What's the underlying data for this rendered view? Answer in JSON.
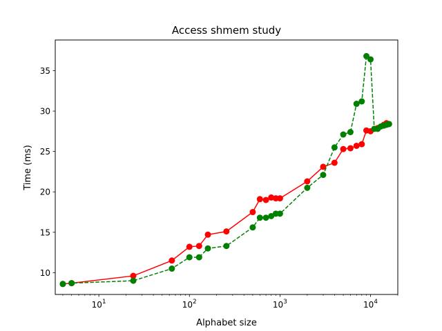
{
  "chart_data": {
    "type": "line",
    "title": "Access shmem study",
    "xlabel": "Alphabet size",
    "ylabel": "Time (ms)",
    "xscale": "log",
    "xlim": [
      3.3,
      20000
    ],
    "ylim": [
      7.3,
      38.8
    ],
    "grid": false,
    "x_ticks": [
      {
        "value": 10,
        "base": "10",
        "exp": "1"
      },
      {
        "value": 100,
        "base": "10",
        "exp": "2"
      },
      {
        "value": 1000,
        "base": "10",
        "exp": "3"
      },
      {
        "value": 10000,
        "base": "10",
        "exp": "4"
      }
    ],
    "y_ticks": [
      10,
      15,
      20,
      25,
      30,
      35
    ],
    "series": [
      {
        "color": "#ff0000",
        "linestyle": "solid",
        "marker": "circle",
        "x": [
          4,
          5,
          24,
          64,
          100,
          128,
          160,
          256,
          500,
          600,
          700,
          800,
          900,
          1000,
          2000,
          3000,
          4000,
          5000,
          6000,
          7000,
          8000,
          9000,
          10000,
          12000,
          14000,
          15000,
          16000
        ],
        "y": [
          8.6,
          8.7,
          9.6,
          11.5,
          13.2,
          13.3,
          14.7,
          15.1,
          17.5,
          19.1,
          19.0,
          19.3,
          19.2,
          19.2,
          21.3,
          23.1,
          23.6,
          25.3,
          25.4,
          25.7,
          25.9,
          27.6,
          27.5,
          27.9,
          28.3,
          28.5,
          28.4
        ]
      },
      {
        "color": "#008000",
        "linestyle": "dashed",
        "marker": "circle",
        "x": [
          4,
          5,
          24,
          64,
          100,
          128,
          160,
          256,
          500,
          600,
          700,
          800,
          900,
          1000,
          2000,
          3000,
          4000,
          5000,
          6000,
          7000,
          8000,
          9000,
          10000,
          11000,
          12000,
          13000,
          14000,
          15000,
          16000
        ],
        "y": [
          8.6,
          8.7,
          9.0,
          10.5,
          11.9,
          11.9,
          13.0,
          13.3,
          15.6,
          16.8,
          16.8,
          17.0,
          17.3,
          17.3,
          20.5,
          22.1,
          25.5,
          27.1,
          27.4,
          30.9,
          31.2,
          36.8,
          36.4,
          27.8,
          27.8,
          28.1,
          28.2,
          28.3,
          28.4
        ]
      }
    ]
  }
}
